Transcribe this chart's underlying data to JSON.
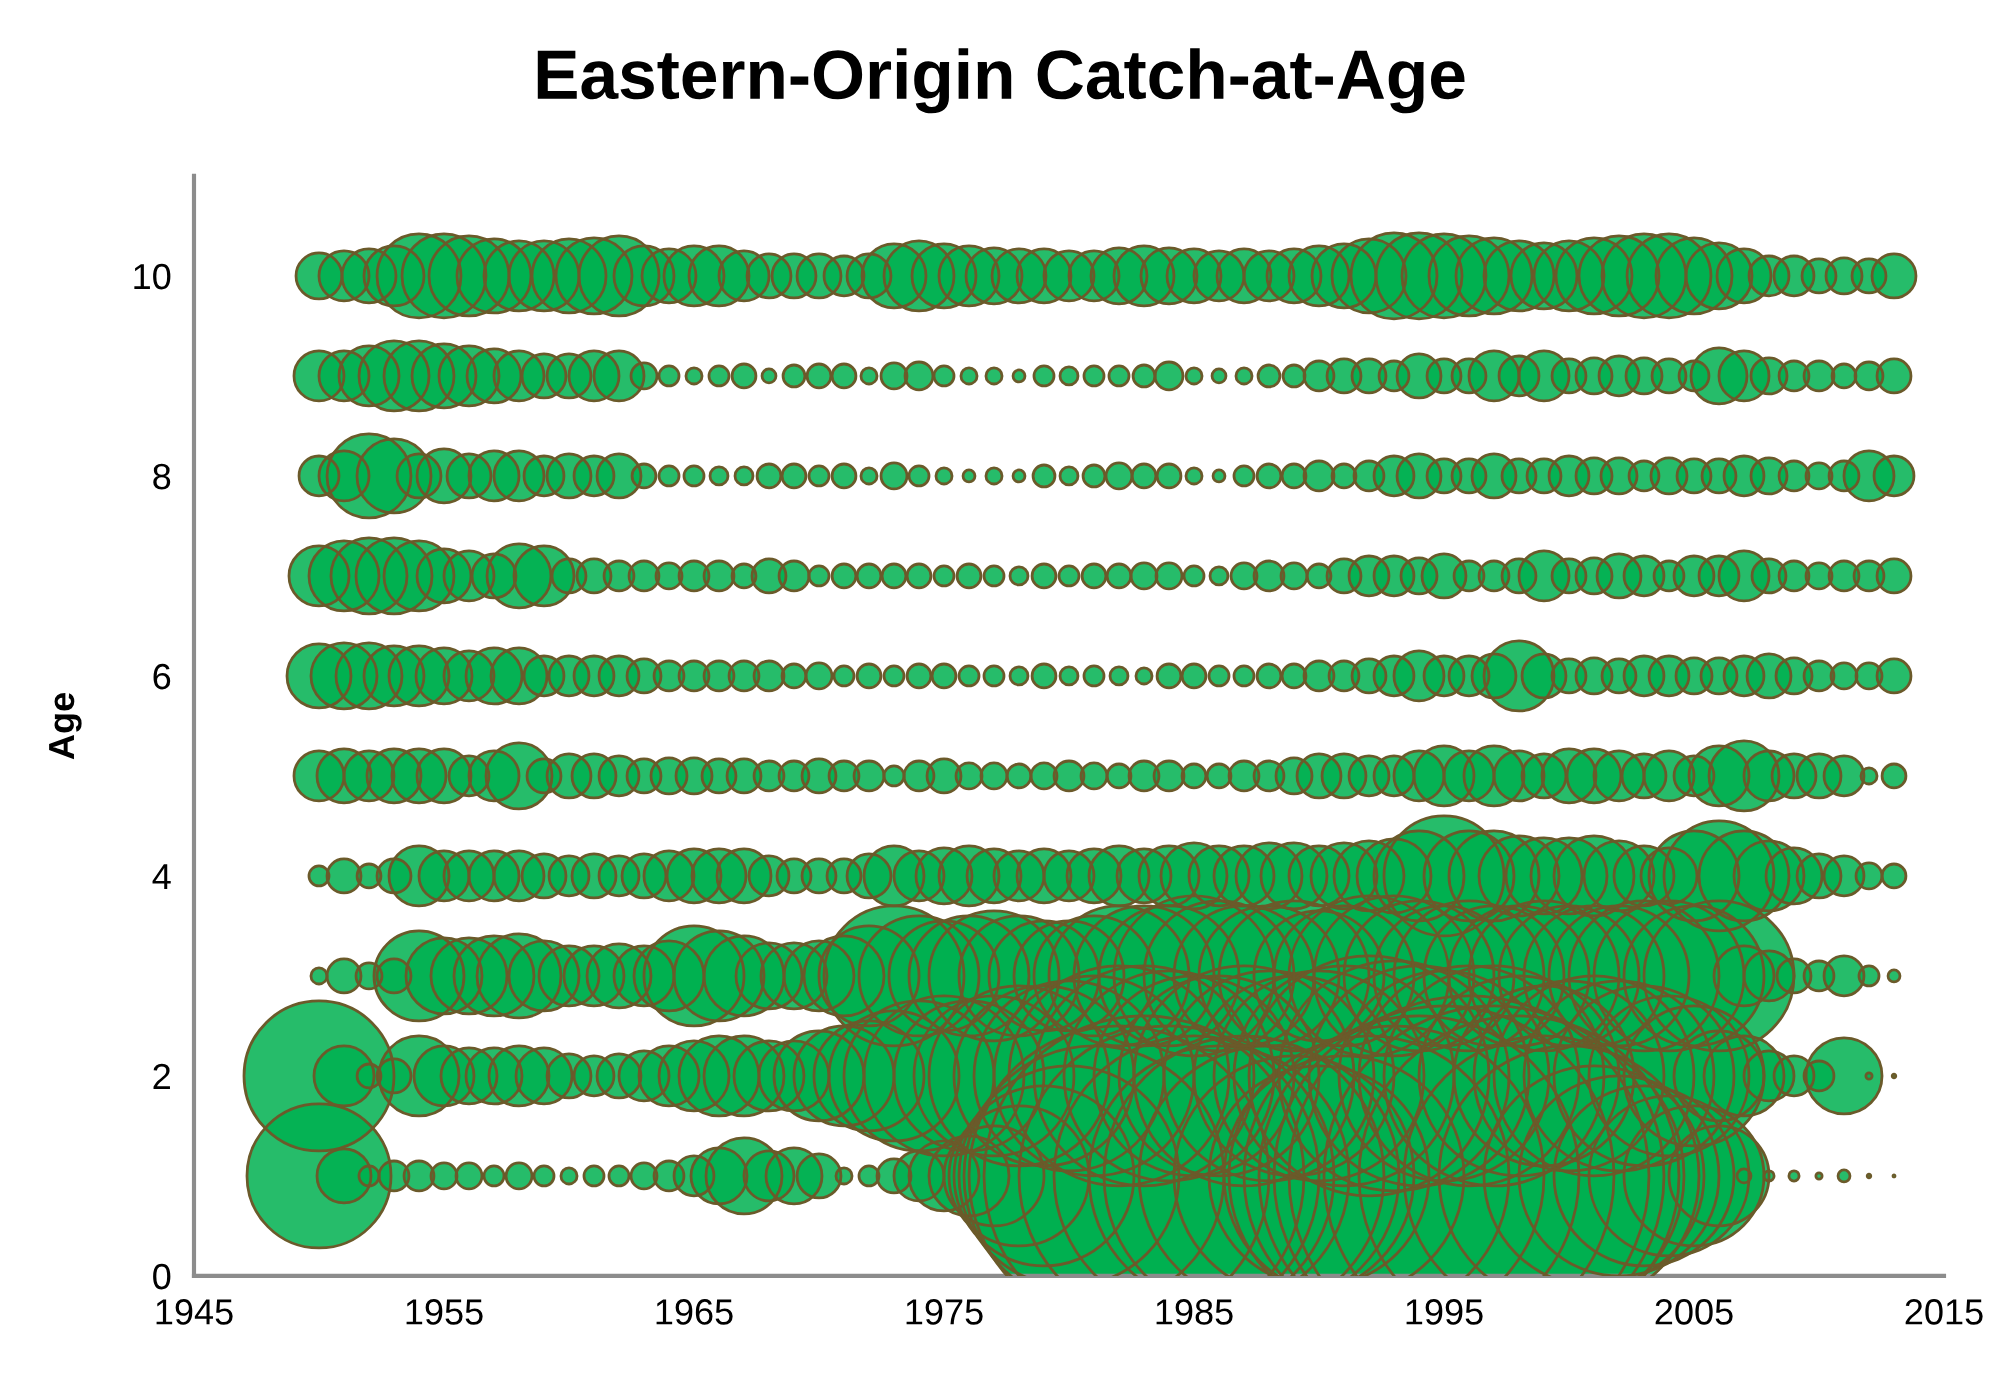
{
  "chart_data": {
    "type": "bubble",
    "title": "Eastern-Origin Catch-at-Age",
    "ylabel": "Age",
    "marker": "circle",
    "xlim": [
      1945,
      2015
    ],
    "xticks": [
      1945,
      1955,
      1965,
      1975,
      1985,
      1995,
      2005,
      2015
    ],
    "ylim": [
      0,
      11
    ],
    "yticks": [
      0,
      2,
      4,
      6,
      8,
      10
    ],
    "x": [
      1950,
      1951,
      1952,
      1953,
      1954,
      1955,
      1956,
      1957,
      1958,
      1959,
      1960,
      1961,
      1962,
      1963,
      1964,
      1965,
      1966,
      1967,
      1968,
      1969,
      1970,
      1971,
      1972,
      1973,
      1974,
      1975,
      1976,
      1977,
      1978,
      1979,
      1980,
      1981,
      1982,
      1983,
      1984,
      1985,
      1986,
      1987,
      1988,
      1989,
      1990,
      1991,
      1992,
      1993,
      1994,
      1995,
      1996,
      1997,
      1998,
      1999,
      2000,
      2001,
      2002,
      2003,
      2004,
      2005,
      2006,
      2007,
      2008,
      2009,
      2010,
      2011,
      2012,
      2013
    ],
    "series": [
      {
        "color": "#00b050",
        "values": [
          1,
          1,
          1,
          1,
          1,
          1,
          1,
          1,
          1,
          1,
          1,
          1,
          1,
          1,
          1,
          1,
          1,
          1,
          1,
          1,
          1,
          1,
          1,
          1,
          1,
          1,
          1,
          1,
          1,
          1,
          1,
          1,
          1,
          1,
          1,
          1,
          1,
          1,
          1,
          1,
          1,
          1,
          1,
          1,
          1,
          1,
          1,
          1,
          1,
          1,
          1,
          1,
          1,
          1,
          1,
          1,
          1,
          1,
          1,
          1,
          1,
          1,
          1,
          1
        ],
        "sizes": [
          0.16,
          0.0225,
          0.0031,
          0.0069,
          0.0069,
          0.0052,
          0.0052,
          0.0031,
          0.0052,
          0.0031,
          0.002,
          0.0031,
          0.0031,
          0.0052,
          0.0069,
          0.0123,
          0.0242,
          0.0446,
          0.0193,
          0.0242,
          0.0149,
          0.002,
          0.0031,
          0.0089,
          0.0193,
          0.0378,
          0.0494,
          0.0772,
          0.1512,
          0.25,
          0.3735,
          0.5216,
          0.6944,
          0.7901,
          0.6944,
          0.6049,
          0.5216,
          0.6049,
          0.5216,
          0.4444,
          0.3735,
          0.4444,
          0.6049,
          0.6944,
          0.7901,
          0.892,
          1,
          0.892,
          0.7901,
          0.6049,
          0.5216,
          0.3735,
          0.3086,
          0.25,
          0.1975,
          0.1512,
          0.0772,
          0.0015,
          0.0008,
          0.0008,
          0.0003,
          0.0011,
          0.0001,
          3e-05
        ]
      },
      {
        "color": "#00b050",
        "values": [
          2,
          2,
          2,
          2,
          2,
          2,
          2,
          2,
          2,
          2,
          2,
          2,
          2,
          2,
          2,
          2,
          2,
          2,
          2,
          2,
          2,
          2,
          2,
          2,
          2,
          2,
          2,
          2,
          2,
          2,
          2,
          2,
          2,
          2,
          2,
          2,
          2,
          2,
          2,
          2,
          2,
          2,
          2,
          2,
          2,
          2,
          2,
          2,
          2,
          2,
          2,
          2,
          2,
          2,
          2,
          2,
          2,
          2,
          2,
          2,
          2,
          2,
          2,
          2
        ],
        "sizes": [
          0.1736,
          0.0278,
          0.0044,
          0.0089,
          0.0494,
          0.0278,
          0.0242,
          0.0242,
          0.0278,
          0.0242,
          0.0149,
          0.0123,
          0.0149,
          0.0193,
          0.0278,
          0.0378,
          0.0494,
          0.0494,
          0.0378,
          0.0378,
          0.0625,
          0.0772,
          0.0934,
          0.1304,
          0.1736,
          0.1975,
          0.1736,
          0.1975,
          0.25,
          0.25,
          0.2785,
          0.3086,
          0.3735,
          0.3735,
          0.3403,
          0.3086,
          0.3086,
          0.3735,
          0.3403,
          0.3086,
          0.3403,
          0.3735,
          0.4444,
          0.4082,
          0.3735,
          0.3403,
          0.3735,
          0.3735,
          0.3086,
          0.25,
          0.2785,
          0.3086,
          0.2785,
          0.25,
          0.1975,
          0.1512,
          0.0625,
          0.0494,
          0.0193,
          0.0123,
          0.0069,
          0.0446,
          0.0003,
          0.0001
        ]
      },
      {
        "color": "#00b050",
        "values": [
          3,
          3,
          3,
          3,
          3,
          3,
          3,
          3,
          3,
          3,
          3,
          3,
          3,
          3,
          3,
          3,
          3,
          3,
          3,
          3,
          3,
          3,
          3,
          3,
          3,
          3,
          3,
          3,
          3,
          3,
          3,
          3,
          3,
          3,
          3,
          3,
          3,
          3,
          3,
          3,
          3,
          3,
          3,
          3,
          3,
          3,
          3,
          3,
          3,
          3,
          3,
          3,
          3,
          3,
          3,
          3,
          3,
          3,
          3,
          3,
          3,
          3,
          3,
          3
        ],
        "sizes": [
          0.002,
          0.0089,
          0.0052,
          0.0089,
          0.0625,
          0.0446,
          0.0446,
          0.0494,
          0.0544,
          0.0378,
          0.0278,
          0.0278,
          0.0316,
          0.0278,
          0.0378,
          0.0772,
          0.0625,
          0.0494,
          0.0336,
          0.0336,
          0.0378,
          0.0494,
          0.0772,
          0.1512,
          0.1111,
          0.0934,
          0.1111,
          0.1304,
          0.1111,
          0.0934,
          0.0934,
          0.1111,
          0.1512,
          0.1512,
          0.1512,
          0.1975,
          0.1736,
          0.1512,
          0.1512,
          0.1736,
          0.1304,
          0.1512,
          0.1975,
          0.1975,
          0.1736,
          0.1512,
          0.1736,
          0.1512,
          0.1512,
          0.1736,
          0.1512,
          0.1512,
          0.1512,
          0.1736,
          0.1736,
          0.1512,
          0.1736,
          0.0278,
          0.0193,
          0.0089,
          0.0069,
          0.0123,
          0.0031,
          0.0011
        ]
      },
      {
        "color": "#00b050",
        "values": [
          4,
          4,
          4,
          4,
          4,
          4,
          4,
          4,
          4,
          4,
          4,
          4,
          4,
          4,
          4,
          4,
          4,
          4,
          4,
          4,
          4,
          4,
          4,
          4,
          4,
          4,
          4,
          4,
          4,
          4,
          4,
          4,
          4,
          4,
          4,
          4,
          4,
          4,
          4,
          4,
          4,
          4,
          4,
          4,
          4,
          4,
          4,
          4,
          4,
          4,
          4,
          4,
          4,
          4,
          4,
          4,
          4,
          4,
          4,
          4,
          4,
          4,
          4,
          4
        ],
        "sizes": [
          0.0031,
          0.0089,
          0.0044,
          0.0089,
          0.0278,
          0.0193,
          0.0193,
          0.0193,
          0.0193,
          0.0149,
          0.0123,
          0.0149,
          0.0123,
          0.0149,
          0.0193,
          0.0225,
          0.0225,
          0.0225,
          0.0123,
          0.0089,
          0.0089,
          0.0089,
          0.0149,
          0.0278,
          0.0193,
          0.0242,
          0.0278,
          0.0225,
          0.0193,
          0.0225,
          0.0193,
          0.0225,
          0.0278,
          0.0225,
          0.0278,
          0.0336,
          0.0278,
          0.0278,
          0.0336,
          0.0336,
          0.0278,
          0.0336,
          0.0378,
          0.0423,
          0.0625,
          0.1111,
          0.0625,
          0.0625,
          0.0494,
          0.0446,
          0.0446,
          0.0494,
          0.0378,
          0.0278,
          0.0242,
          0.0625,
          0.0934,
          0.0625,
          0.0378,
          0.0242,
          0.0149,
          0.0123,
          0.0052,
          0.0044
        ]
      },
      {
        "color": "#00b050",
        "values": [
          5,
          5,
          5,
          5,
          5,
          5,
          5,
          5,
          5,
          5,
          5,
          5,
          5,
          5,
          5,
          5,
          5,
          5,
          5,
          5,
          5,
          5,
          5,
          5,
          5,
          5,
          5,
          5,
          5,
          5,
          5,
          5,
          5,
          5,
          5,
          5,
          5,
          5,
          5,
          5,
          5,
          5,
          5,
          5,
          5,
          5,
          5,
          5,
          5,
          5,
          5,
          5,
          5,
          5,
          5,
          5,
          5,
          5,
          5,
          5,
          5,
          5,
          5,
          5
        ],
        "sizes": [
          0.0193,
          0.0225,
          0.0193,
          0.0225,
          0.0225,
          0.0225,
          0.0123,
          0.0193,
          0.0336,
          0.0089,
          0.0149,
          0.0149,
          0.0123,
          0.0089,
          0.01,
          0.01,
          0.0089,
          0.0089,
          0.0069,
          0.0069,
          0.0089,
          0.0069,
          0.0069,
          0.0031,
          0.0069,
          0.0089,
          0.0052,
          0.0052,
          0.0044,
          0.0052,
          0.0069,
          0.0052,
          0.0044,
          0.0069,
          0.0069,
          0.0044,
          0.0044,
          0.0069,
          0.0069,
          0.01,
          0.0149,
          0.0149,
          0.0123,
          0.0123,
          0.0193,
          0.0278,
          0.0193,
          0.0278,
          0.0193,
          0.0149,
          0.0225,
          0.0225,
          0.0193,
          0.0149,
          0.0193,
          0.0123,
          0.0278,
          0.0378,
          0.0193,
          0.0149,
          0.0149,
          0.0123,
          0.002,
          0.0044
        ]
      },
      {
        "color": "#00b050",
        "values": [
          6,
          6,
          6,
          6,
          6,
          6,
          6,
          6,
          6,
          6,
          6,
          6,
          6,
          6,
          6,
          6,
          6,
          6,
          6,
          6,
          6,
          6,
          6,
          6,
          6,
          6,
          6,
          6,
          6,
          6,
          6,
          6,
          6,
          6,
          6,
          6,
          6,
          6,
          6,
          6,
          6,
          6,
          6,
          6,
          6,
          6,
          6,
          6,
          6,
          6,
          6,
          6,
          6,
          6,
          6,
          6,
          6,
          6,
          6,
          6,
          6,
          6,
          6,
          6
        ],
        "sizes": [
          0.0316,
          0.0336,
          0.0336,
          0.0278,
          0.0278,
          0.0242,
          0.0193,
          0.0242,
          0.0242,
          0.0123,
          0.0123,
          0.0123,
          0.0123,
          0.0089,
          0.0069,
          0.0069,
          0.0069,
          0.0069,
          0.0069,
          0.0044,
          0.0052,
          0.0031,
          0.0044,
          0.0031,
          0.0044,
          0.0044,
          0.0031,
          0.0031,
          0.0025,
          0.0044,
          0.0025,
          0.0031,
          0.0025,
          0.002,
          0.0044,
          0.0044,
          0.0031,
          0.0031,
          0.0044,
          0.0044,
          0.0069,
          0.0069,
          0.0089,
          0.0123,
          0.0193,
          0.0123,
          0.0123,
          0.0149,
          0.0378,
          0.0149,
          0.0089,
          0.01,
          0.0089,
          0.0123,
          0.0123,
          0.01,
          0.01,
          0.0123,
          0.0149,
          0.01,
          0.0069,
          0.0052,
          0.0052,
          0.0089
        ]
      },
      {
        "color": "#00b050",
        "values": [
          7,
          7,
          7,
          7,
          7,
          7,
          7,
          7,
          7,
          7,
          7,
          7,
          7,
          7,
          7,
          7,
          7,
          7,
          7,
          7,
          7,
          7,
          7,
          7,
          7,
          7,
          7,
          7,
          7,
          7,
          7,
          7,
          7,
          7,
          7,
          7,
          7,
          7,
          7,
          7,
          7,
          7,
          7,
          7,
          7,
          7,
          7,
          7,
          7,
          7,
          7,
          7,
          7,
          7,
          7,
          7,
          7,
          7,
          7,
          7,
          7,
          7,
          7,
          7
        ],
        "sizes": [
          0.0278,
          0.0378,
          0.0446,
          0.0446,
          0.0378,
          0.0225,
          0.0193,
          0.0149,
          0.0316,
          0.0278,
          0.0089,
          0.0089,
          0.0069,
          0.0069,
          0.0052,
          0.0069,
          0.0069,
          0.0044,
          0.0089,
          0.0069,
          0.0031,
          0.0044,
          0.0044,
          0.0044,
          0.0044,
          0.0031,
          0.0044,
          0.0031,
          0.0025,
          0.0044,
          0.0031,
          0.0044,
          0.0044,
          0.0052,
          0.0052,
          0.0031,
          0.0025,
          0.0052,
          0.0069,
          0.0052,
          0.0044,
          0.0089,
          0.0123,
          0.0123,
          0.01,
          0.0149,
          0.0069,
          0.0069,
          0.0089,
          0.0193,
          0.0089,
          0.01,
          0.0149,
          0.0123,
          0.0069,
          0.0123,
          0.0123,
          0.0193,
          0.0089,
          0.0069,
          0.0052,
          0.0069,
          0.0069,
          0.0089
        ]
      },
      {
        "color": "#00b050",
        "values": [
          8,
          8,
          8,
          8,
          8,
          8,
          8,
          8,
          8,
          8,
          8,
          8,
          8,
          8,
          8,
          8,
          8,
          8,
          8,
          8,
          8,
          8,
          8,
          8,
          8,
          8,
          8,
          8,
          8,
          8,
          8,
          8,
          8,
          8,
          8,
          8,
          8,
          8,
          8,
          8,
          8,
          8,
          8,
          8,
          8,
          8,
          8,
          8,
          8,
          8,
          8,
          8,
          8,
          8,
          8,
          8,
          8,
          8,
          8,
          8,
          8,
          8,
          8,
          8
        ],
        "sizes": [
          0.0123,
          0.0193,
          0.0544,
          0.0423,
          0.0149,
          0.0225,
          0.0149,
          0.0193,
          0.0193,
          0.0123,
          0.0149,
          0.0123,
          0.0149,
          0.0044,
          0.0031,
          0.0031,
          0.0025,
          0.0025,
          0.0044,
          0.0044,
          0.0031,
          0.0044,
          0.002,
          0.0052,
          0.0031,
          0.002,
          0.0011,
          0.002,
          0.0011,
          0.0037,
          0.0025,
          0.0037,
          0.0052,
          0.0044,
          0.0044,
          0.002,
          0.0011,
          0.0031,
          0.0044,
          0.0044,
          0.0069,
          0.0044,
          0.0069,
          0.0123,
          0.0149,
          0.0089,
          0.0089,
          0.0149,
          0.0089,
          0.0089,
          0.0123,
          0.01,
          0.01,
          0.0069,
          0.01,
          0.0089,
          0.0089,
          0.0123,
          0.01,
          0.0069,
          0.0052,
          0.0069,
          0.0193,
          0.0123
        ]
      },
      {
        "color": "#00b050",
        "values": [
          9,
          9,
          9,
          9,
          9,
          9,
          9,
          9,
          9,
          9,
          9,
          9,
          9,
          9,
          9,
          9,
          9,
          9,
          9,
          9,
          9,
          9,
          9,
          9,
          9,
          9,
          9,
          9,
          9,
          9,
          9,
          9,
          9,
          9,
          9,
          9,
          9,
          9,
          9,
          9,
          9,
          9,
          9,
          9,
          9,
          9,
          9,
          9,
          9,
          9,
          9,
          9,
          9,
          9,
          9,
          9,
          9,
          9,
          9,
          9,
          9,
          9,
          9,
          9
        ],
        "sizes": [
          0.0193,
          0.0193,
          0.0278,
          0.0378,
          0.0378,
          0.0316,
          0.0278,
          0.0225,
          0.0193,
          0.0149,
          0.0149,
          0.0193,
          0.0193,
          0.0052,
          0.0031,
          0.002,
          0.0031,
          0.0044,
          0.0015,
          0.0037,
          0.0044,
          0.0044,
          0.002,
          0.0052,
          0.006,
          0.0031,
          0.002,
          0.002,
          0.0011,
          0.0031,
          0.0025,
          0.0031,
          0.0031,
          0.0037,
          0.006,
          0.002,
          0.0015,
          0.002,
          0.0037,
          0.0037,
          0.0069,
          0.0089,
          0.0089,
          0.0069,
          0.0149,
          0.0089,
          0.0089,
          0.0193,
          0.0123,
          0.0193,
          0.0089,
          0.01,
          0.0123,
          0.01,
          0.0089,
          0.0069,
          0.0242,
          0.0193,
          0.01,
          0.0069,
          0.0069,
          0.0044,
          0.006,
          0.0089
        ]
      },
      {
        "color": "#00b050",
        "values": [
          10,
          10,
          10,
          10,
          10,
          10,
          10,
          10,
          10,
          10,
          10,
          10,
          10,
          10,
          10,
          10,
          10,
          10,
          10,
          10,
          10,
          10,
          10,
          10,
          10,
          10,
          10,
          10,
          10,
          10,
          10,
          10,
          10,
          10,
          10,
          10,
          10,
          10,
          10,
          10,
          10,
          10,
          10,
          10,
          10,
          10,
          10,
          10,
          10,
          10,
          10,
          10,
          10,
          10,
          10,
          10,
          10,
          10,
          10,
          10,
          10,
          10,
          10,
          10
        ],
        "sizes": [
          0.0163,
          0.0193,
          0.0225,
          0.0278,
          0.0544,
          0.0544,
          0.0494,
          0.0423,
          0.0378,
          0.0378,
          0.0423,
          0.0446,
          0.0494,
          0.0278,
          0.0225,
          0.0278,
          0.0278,
          0.0193,
          0.0149,
          0.0149,
          0.0149,
          0.0123,
          0.0149,
          0.0316,
          0.0378,
          0.0316,
          0.0278,
          0.0242,
          0.0225,
          0.0225,
          0.0193,
          0.0193,
          0.0242,
          0.0278,
          0.0242,
          0.0225,
          0.0193,
          0.0225,
          0.0193,
          0.0225,
          0.0278,
          0.0316,
          0.0423,
          0.0571,
          0.0571,
          0.0544,
          0.0494,
          0.0446,
          0.0378,
          0.0336,
          0.0378,
          0.0446,
          0.0494,
          0.0544,
          0.0544,
          0.0446,
          0.0336,
          0.0225,
          0.0123,
          0.0123,
          0.0089,
          0.01,
          0.0089,
          0.0149
        ]
      }
    ]
  }
}
